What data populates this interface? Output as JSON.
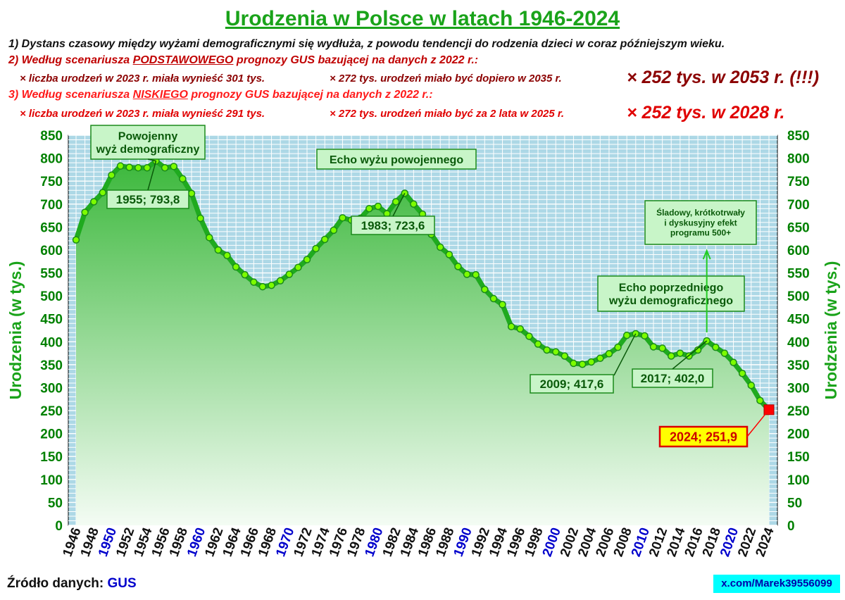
{
  "header": {
    "title": "Urodzenia w Polsce w latach 1946-2024",
    "line1": "1) Dystans czasowy między wyżami demograficznymi się wydłuża, z powodu tendencji do rodzenia dzieci w coraz późniejszym wieku.",
    "line2_pre": "2) Według scenariusza ",
    "line2_em": "PODSTAWOWEGO",
    "line2_post": " prognozy GUS bazującej na danych z 2022 r.:",
    "line2_bullet1": "× liczba urodzeń w 2023 r. miała wynieść 301 tys.",
    "line2_bullet2": "× 272 tys. urodzeń miało być dopiero w 2035 r.",
    "line2_big": "× 252 tys. w 2053 r. (!!!)",
    "line3_pre": "3) Według scenariusza ",
    "line3_em": "NISKIEGO",
    "line3_post": " prognozy GUS bazującej na danych z 2022 r.:",
    "line3_bullet1": "× liczba urodzeń w 2023 r. miała wynieść 291 tys.",
    "line3_bullet2": "× 272 tys. urodzeń miało być za 2 lata w 2025 r.",
    "line3_big": "× 252 tys. w 2028 r."
  },
  "footer": {
    "source_label": "Źródło danych:",
    "source_value": "GUS",
    "handle": "x.com/Marek39556099"
  },
  "colors": {
    "plot_bg": "#add8e6",
    "line": "#1faa1f",
    "marker": "#7cfc00",
    "axis_text": "#008000",
    "decade_label": "#0000cc",
    "last_point": "#ff0000",
    "annotation_bg": "#c8f5c8"
  },
  "chart_data": {
    "type": "area",
    "ylabel": "Urodzenia (w tys.)",
    "ylabel_right": "Urodzenia (w tys.)",
    "ylim": [
      0,
      850
    ],
    "ytick_step": 50,
    "xlim": [
      1946,
      2024
    ],
    "xtick_step": 2,
    "x_highlight_decades": [
      1950,
      1960,
      1970,
      1980,
      1990,
      2000,
      2010,
      2020
    ],
    "grid": true,
    "x": [
      1946,
      1947,
      1948,
      1949,
      1950,
      1951,
      1952,
      1953,
      1954,
      1955,
      1956,
      1957,
      1958,
      1959,
      1960,
      1961,
      1962,
      1963,
      1964,
      1965,
      1966,
      1967,
      1968,
      1969,
      1970,
      1971,
      1972,
      1973,
      1974,
      1975,
      1976,
      1977,
      1978,
      1979,
      1980,
      1981,
      1982,
      1983,
      1984,
      1985,
      1986,
      1987,
      1988,
      1989,
      1990,
      1991,
      1992,
      1993,
      1994,
      1995,
      1996,
      1997,
      1998,
      1999,
      2000,
      2001,
      2002,
      2003,
      2004,
      2005,
      2006,
      2007,
      2008,
      2009,
      2010,
      2011,
      2012,
      2013,
      2014,
      2015,
      2016,
      2017,
      2018,
      2019,
      2020,
      2021,
      2022,
      2023,
      2024
    ],
    "values": [
      622,
      682,
      705,
      725,
      763,
      783,
      780,
      779,
      779,
      793.8,
      779,
      782,
      755,
      723,
      669,
      627,
      600,
      588,
      563,
      546,
      530,
      520,
      523,
      533,
      547,
      562,
      579,
      603,
      623,
      643,
      670,
      665,
      669,
      690,
      695,
      679,
      705,
      723.6,
      700,
      678,
      634,
      606,
      590,
      564,
      547,
      546,
      514,
      494,
      481,
      433,
      428,
      412,
      395,
      382,
      378,
      369,
      353,
      351,
      356,
      364,
      374,
      388,
      414,
      417.6,
      413,
      389,
      386,
      369,
      375,
      369,
      382,
      402,
      388,
      375,
      355,
      331,
      305,
      272,
      251.9
    ],
    "annotations": [
      {
        "text": "1955; 793,8",
        "year": 1955,
        "value": 793.8
      },
      {
        "text": "1983; 723,6",
        "year": 1983,
        "value": 723.6
      },
      {
        "text": "2009; 417,6",
        "year": 2009,
        "value": 417.6
      },
      {
        "text": "2017; 402,0",
        "year": 2017,
        "value": 402.0
      },
      {
        "text": "2024; 251,9",
        "year": 2024,
        "value": 251.9
      }
    ],
    "callouts": [
      {
        "lines": [
          "Powojenny",
          "wyż demograficzny"
        ]
      },
      {
        "lines": [
          "Echo wyżu powojennego"
        ]
      },
      {
        "lines": [
          "Echo poprzedniego",
          "wyżu demograficznego"
        ]
      },
      {
        "lines": [
          "Śladowy, krótkotrwały",
          "i dyskusyjny efekt",
          "programu 500+"
        ]
      }
    ]
  }
}
